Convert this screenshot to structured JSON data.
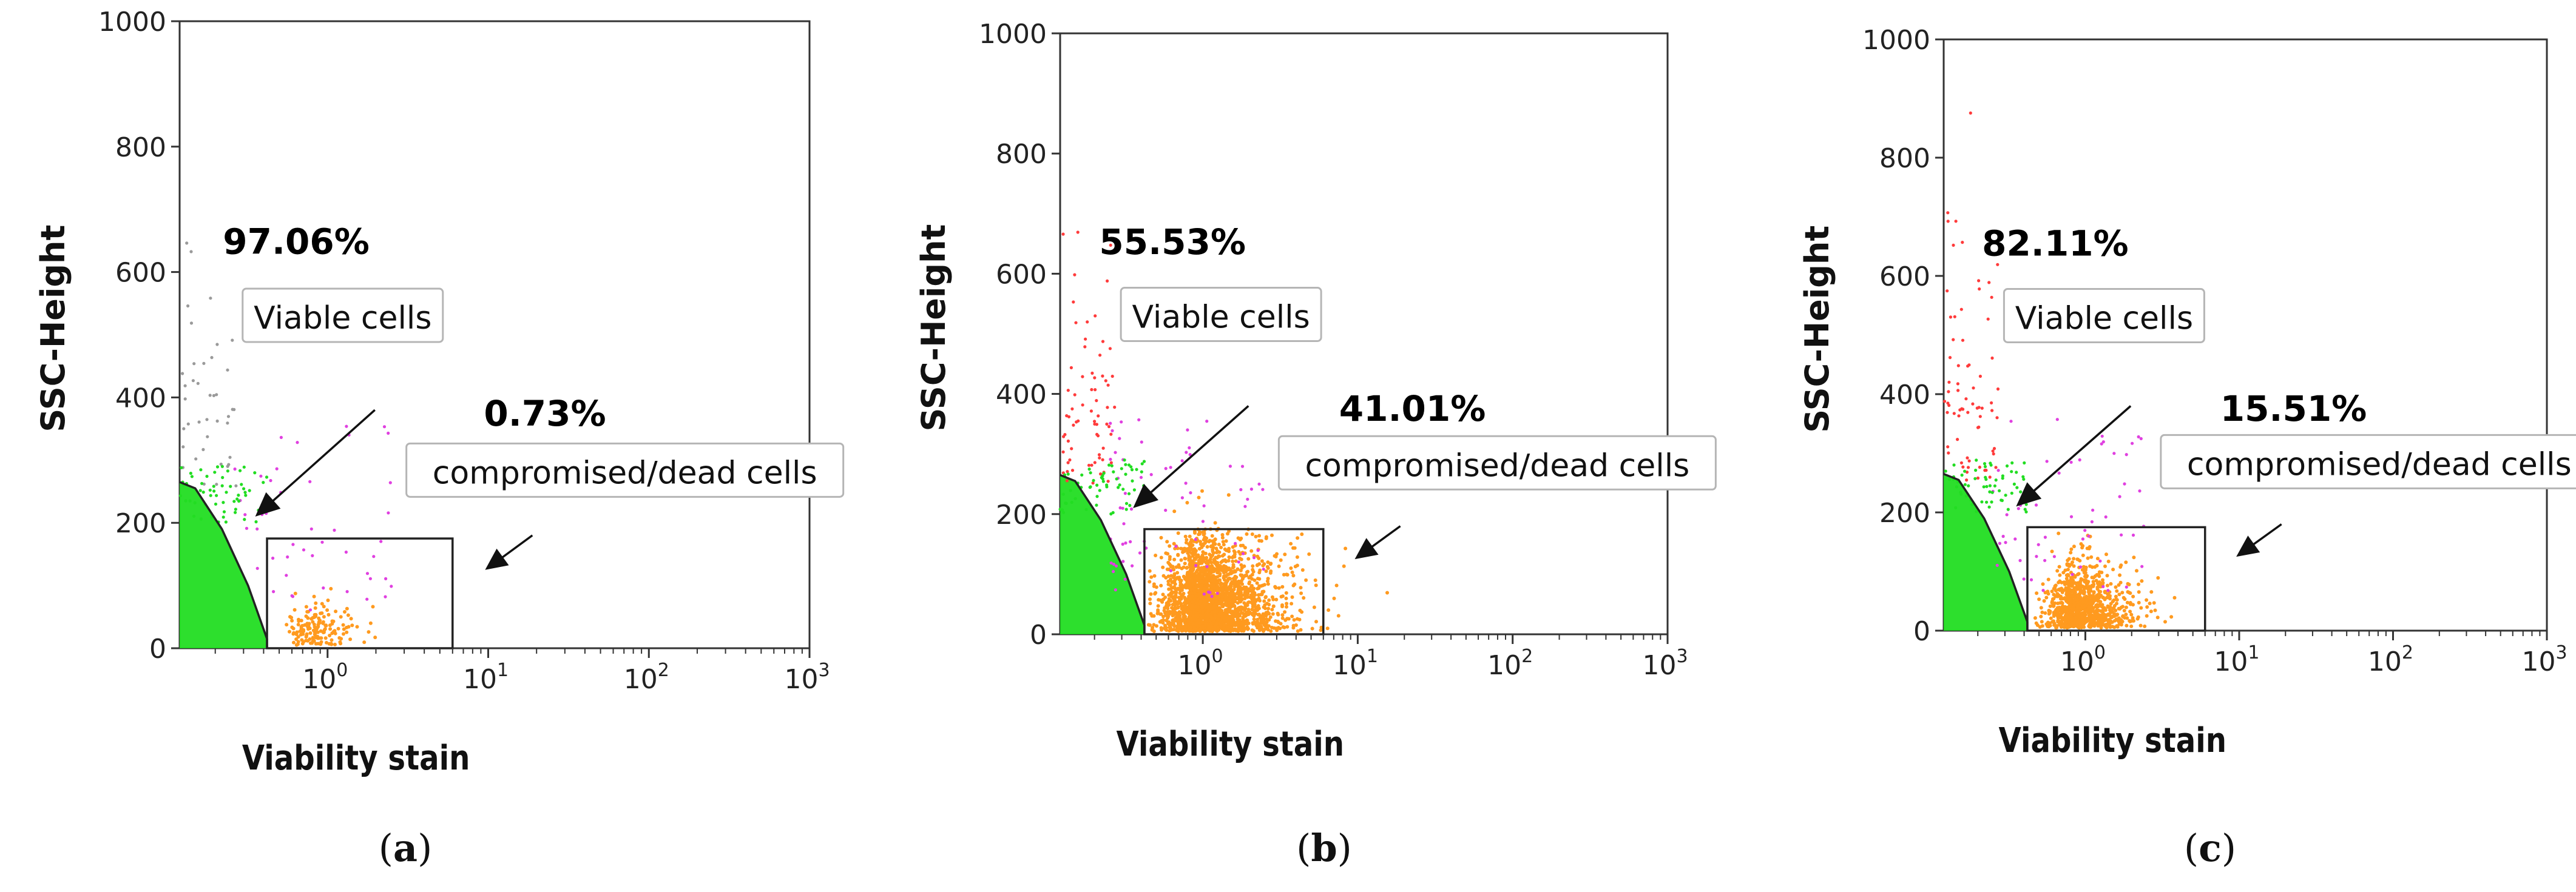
{
  "figure": {
    "panels": [
      {
        "id": "a",
        "caption": "(a)",
        "letter": "a"
      },
      {
        "id": "b",
        "caption": "(b)",
        "letter": "b"
      },
      {
        "id": "c",
        "caption": "(c)",
        "letter": "c"
      }
    ]
  },
  "colors": {
    "viable": "#22dd22",
    "dead": "#ff9a1f",
    "intermediate": "#e040e0",
    "debris_red": "#ff3b3b",
    "debris_gray": "#9a9a9a",
    "axis": "#333333",
    "gate": "#222222"
  },
  "chart_data": [
    {
      "panel": "a",
      "type": "scatter",
      "title": "",
      "xlabel": "Viability stain",
      "ylabel": "SSC-Height",
      "x_scale": "log",
      "xlim": [
        0.12,
        1000
      ],
      "ylim": [
        0,
        1000
      ],
      "x_ticks": [
        {
          "base": "10",
          "exp": "0"
        },
        {
          "base": "10",
          "exp": "1"
        },
        {
          "base": "10",
          "exp": "2"
        },
        {
          "base": "10",
          "exp": "3"
        }
      ],
      "y_ticks": [
        "0",
        "200",
        "400",
        "600",
        "800",
        "1000"
      ],
      "gates": [
        {
          "name": "Viable cells",
          "percent": "97.06%",
          "label": "Viable cells"
        },
        {
          "name": "compromised/dead cells",
          "percent": "0.73%",
          "label": "compromised/dead cells",
          "x_range": [
            0.42,
            6
          ],
          "y_range": [
            0,
            175
          ]
        }
      ],
      "populations": {
        "viable_fraction": 97.06,
        "dead_fraction": 0.73
      }
    },
    {
      "panel": "b",
      "type": "scatter",
      "title": "",
      "xlabel": "Viability stain",
      "ylabel": "SSC-Height",
      "x_scale": "log",
      "xlim": [
        0.12,
        1000
      ],
      "ylim": [
        0,
        1000
      ],
      "x_ticks": [
        {
          "base": "10",
          "exp": "0"
        },
        {
          "base": "10",
          "exp": "1"
        },
        {
          "base": "10",
          "exp": "2"
        },
        {
          "base": "10",
          "exp": "3"
        }
      ],
      "y_ticks": [
        "0",
        "200",
        "400",
        "600",
        "800",
        "1000"
      ],
      "gates": [
        {
          "name": "Viable cells",
          "percent": "55.53%",
          "label": "Viable cells"
        },
        {
          "name": "compromised/dead cells",
          "percent": "41.01%",
          "label": "compromised/dead cells",
          "x_range": [
            0.42,
            6
          ],
          "y_range": [
            0,
            175
          ]
        }
      ],
      "populations": {
        "viable_fraction": 55.53,
        "dead_fraction": 41.01
      }
    },
    {
      "panel": "c",
      "type": "scatter",
      "title": "",
      "xlabel": "Viability stain",
      "ylabel": "SSC-Height",
      "x_scale": "log",
      "xlim": [
        0.12,
        1000
      ],
      "ylim": [
        0,
        1000
      ],
      "x_ticks": [
        {
          "base": "10",
          "exp": "0"
        },
        {
          "base": "10",
          "exp": "1"
        },
        {
          "base": "10",
          "exp": "2"
        },
        {
          "base": "10",
          "exp": "3"
        }
      ],
      "y_ticks": [
        "0",
        "200",
        "400",
        "600",
        "800",
        "1000"
      ],
      "gates": [
        {
          "name": "Viable cells",
          "percent": "82.11%",
          "label": "Viable cells"
        },
        {
          "name": "compromised/dead cells",
          "percent": "15.51%",
          "label": "compromised/dead cells",
          "x_range": [
            0.42,
            6
          ],
          "y_range": [
            0,
            175
          ]
        }
      ],
      "populations": {
        "viable_fraction": 82.11,
        "dead_fraction": 15.51
      }
    }
  ]
}
